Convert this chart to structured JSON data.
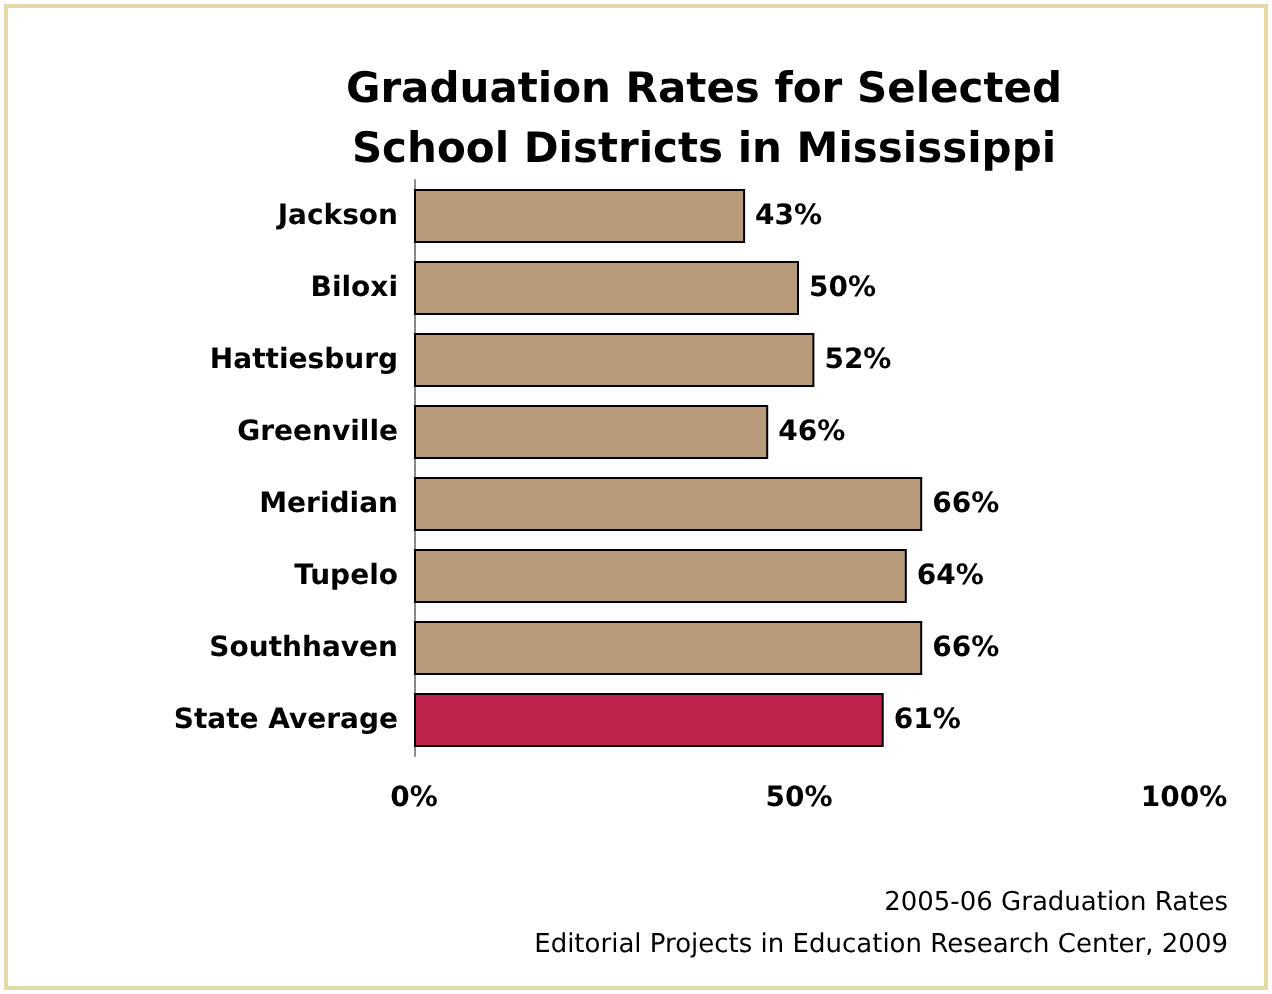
{
  "chart_data": {
    "type": "bar",
    "orientation": "horizontal",
    "title": "Graduation Rates for Selected\nSchool Districts in Mississippi",
    "categories": [
      "Jackson",
      "Biloxi",
      "Hattiesburg",
      "Greenville",
      "Meridian",
      "Tupelo",
      "Southhaven",
      "State Average"
    ],
    "values": [
      43,
      50,
      52,
      46,
      66,
      64,
      66,
      61
    ],
    "colors": [
      "#b89b7b",
      "#b89b7b",
      "#b89b7b",
      "#b89b7b",
      "#b89b7b",
      "#b89b7b",
      "#b89b7b",
      "#c0234b"
    ],
    "value_labels": [
      "43%",
      "50%",
      "52%",
      "46%",
      "66%",
      "64%",
      "66%",
      "61%"
    ],
    "xlim": [
      0,
      100
    ],
    "xticks": [
      {
        "value": 0,
        "label": "0%"
      },
      {
        "value": 50,
        "label": "50%"
      },
      {
        "value": 100,
        "label": "100%"
      }
    ],
    "grid": false,
    "annotations": [
      "2005-06 Graduation Rates",
      "Editorial Projects in Education Research Center, 2009"
    ]
  }
}
